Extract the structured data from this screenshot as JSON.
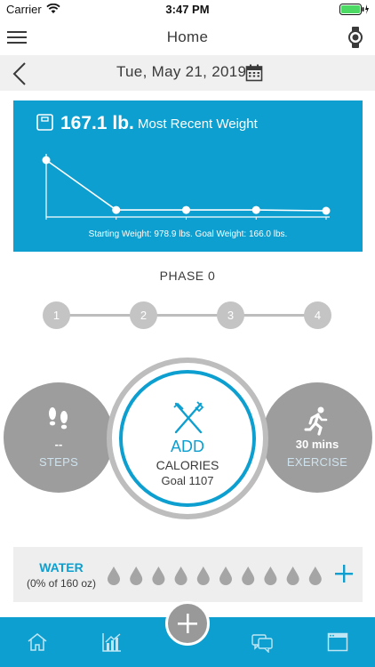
{
  "status": {
    "carrier": "Carrier",
    "time": "3:47 PM"
  },
  "nav": {
    "title": "Home"
  },
  "date_bar": {
    "date": "Tue, May 21, 2019"
  },
  "weight": {
    "value": "167.1 lb.",
    "label": "Most Recent Weight",
    "summary": "Starting Weight: 978.9 lbs. Goal Weight: 166.0 lbs.",
    "chart_data": {
      "type": "line",
      "series": [
        {
          "values": [
            978.9,
            180.0,
            180.0,
            180.0,
            167.1
          ]
        }
      ],
      "grid": false
    }
  },
  "phase": {
    "label": "PHASE 0",
    "steps": [
      "1",
      "2",
      "3",
      "4"
    ]
  },
  "steps_card": {
    "value": "--",
    "label": "STEPS"
  },
  "calories_card": {
    "action": "ADD",
    "label": "CALORIES",
    "goal": "Goal 1107"
  },
  "exercise_card": {
    "value": "30 mins",
    "label": "EXERCISE"
  },
  "water": {
    "title": "WATER",
    "subtitle": "(0% of 160 oz)",
    "drops_filled": 0,
    "drops_total": 10
  },
  "tabs": [
    "home-icon",
    "chart-icon",
    "add-icon",
    "chat-icon",
    "browser-icon"
  ],
  "colors": {
    "accent": "#0d9fcf",
    "neutral": "#9d9d9d"
  }
}
